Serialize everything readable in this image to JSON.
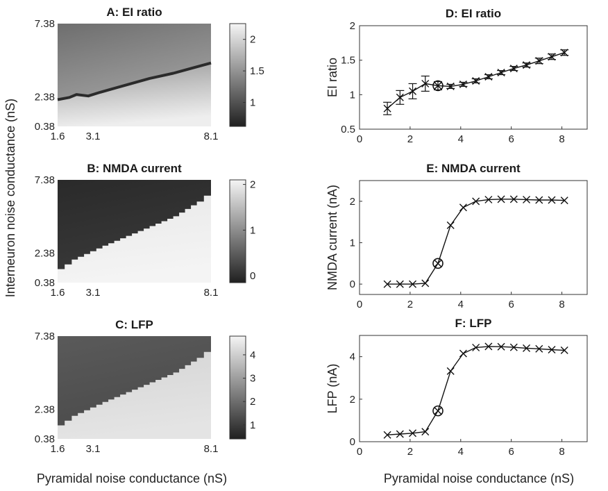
{
  "figure": {
    "left_ylabel": "Interneuron noise conductance (nS)",
    "left_xlabel": "Pyramidal noise conductance (nS)",
    "right_xlabel": "Pyramidal noise conductance (nS)"
  },
  "chart_data": [
    {
      "id": "A",
      "type": "heatmap",
      "title": "A: EI ratio",
      "xticks": [
        "1.6",
        "3.1",
        "8.1"
      ],
      "yticks": [
        "7.38",
        "2.38",
        "0.38"
      ],
      "xlim": [
        1.6,
        8.1
      ],
      "ylim": [
        0.38,
        7.38
      ],
      "colorbar": {
        "ticks": [
          1,
          1.5,
          2
        ],
        "range": [
          0.62,
          2.25
        ]
      },
      "ridge": [
        [
          1.6,
          2.2
        ],
        [
          2.1,
          2.35
        ],
        [
          2.4,
          2.55
        ],
        [
          2.9,
          2.45
        ],
        [
          3.4,
          2.7
        ],
        [
          4.5,
          3.2
        ],
        [
          5.5,
          3.65
        ],
        [
          6.5,
          4.0
        ],
        [
          7.3,
          4.35
        ],
        [
          8.1,
          4.7
        ]
      ]
    },
    {
      "id": "B",
      "type": "heatmap",
      "title": "B: NMDA current",
      "xticks": [
        "1.6",
        "3.1",
        "8.1"
      ],
      "yticks": [
        "7.38",
        "2.38",
        "0.38"
      ],
      "xlim": [
        1.6,
        8.1
      ],
      "ylim": [
        0.38,
        7.38
      ],
      "colorbar": {
        "ticks": [
          0,
          1,
          2
        ],
        "range": [
          -0.15,
          2.1
        ]
      },
      "boundary": [
        [
          1.6,
          1.3
        ],
        [
          2.2,
          1.95
        ],
        [
          3.5,
          2.9
        ],
        [
          5.0,
          3.9
        ],
        [
          6.5,
          4.9
        ],
        [
          7.5,
          5.9
        ],
        [
          8.1,
          6.7
        ]
      ]
    },
    {
      "id": "C",
      "type": "heatmap",
      "title": "C: LFP",
      "xticks": [
        "1.6",
        "3.1",
        "8.1"
      ],
      "yticks": [
        "7.38",
        "2.38",
        "0.38"
      ],
      "xlim": [
        1.6,
        8.1
      ],
      "ylim": [
        0.38,
        7.38
      ],
      "colorbar": {
        "ticks": [
          1,
          2,
          3,
          4
        ],
        "range": [
          0.4,
          4.8
        ]
      },
      "boundary": [
        [
          1.6,
          1.3
        ],
        [
          2.2,
          1.95
        ],
        [
          3.5,
          2.9
        ],
        [
          5.0,
          3.9
        ],
        [
          6.5,
          4.9
        ],
        [
          7.5,
          5.9
        ],
        [
          8.1,
          6.7
        ]
      ]
    },
    {
      "id": "D",
      "type": "line",
      "title": "D: EI ratio",
      "ylabel": "EI ratio",
      "xlim": [
        0,
        9
      ],
      "ylim": [
        0.5,
        2
      ],
      "xticks": [
        0,
        2,
        4,
        6,
        8
      ],
      "yticks": [
        0.5,
        1,
        1.5,
        2
      ],
      "x": [
        1.1,
        1.6,
        2.1,
        2.6,
        3.1,
        3.6,
        4.1,
        4.6,
        5.1,
        5.6,
        6.1,
        6.6,
        7.1,
        7.6,
        8.1
      ],
      "y": [
        0.8,
        0.96,
        1.05,
        1.16,
        1.13,
        1.12,
        1.15,
        1.2,
        1.26,
        1.32,
        1.38,
        1.43,
        1.49,
        1.55,
        1.61
      ],
      "err": [
        0.09,
        0.1,
        0.11,
        0.11,
        0.06,
        0.03,
        0.03,
        0.03,
        0.03,
        0.03,
        0.03,
        0.03,
        0.04,
        0.04,
        0.04
      ],
      "highlight_index": 4
    },
    {
      "id": "E",
      "type": "line",
      "title": "E: NMDA current",
      "ylabel": "NMDA current (nA)",
      "xlim": [
        0,
        9
      ],
      "ylim": [
        -0.25,
        2.5
      ],
      "xticks": [
        0,
        2,
        4,
        6,
        8
      ],
      "yticks": [
        0,
        1,
        2
      ],
      "x": [
        1.1,
        1.6,
        2.1,
        2.6,
        3.1,
        3.6,
        4.1,
        4.6,
        5.1,
        5.6,
        6.1,
        6.6,
        7.1,
        7.6,
        8.1
      ],
      "y": [
        0,
        0,
        0,
        0.02,
        0.5,
        1.42,
        1.85,
        2.0,
        2.04,
        2.05,
        2.05,
        2.04,
        2.03,
        2.03,
        2.02
      ],
      "highlight_index": 4
    },
    {
      "id": "F",
      "type": "line",
      "title": "F: LFP",
      "ylabel": "LFP (nA)",
      "xlim": [
        0,
        9
      ],
      "ylim": [
        0,
        5
      ],
      "xticks": [
        0,
        2,
        4,
        6,
        8
      ],
      "yticks": [
        0,
        2,
        4
      ],
      "x": [
        1.1,
        1.6,
        2.1,
        2.6,
        3.1,
        3.6,
        4.1,
        4.6,
        5.1,
        5.6,
        6.1,
        6.6,
        7.1,
        7.6,
        8.1
      ],
      "y": [
        0.32,
        0.36,
        0.4,
        0.47,
        1.45,
        3.32,
        4.15,
        4.43,
        4.48,
        4.47,
        4.44,
        4.4,
        4.37,
        4.33,
        4.3
      ],
      "highlight_index": 4
    }
  ]
}
